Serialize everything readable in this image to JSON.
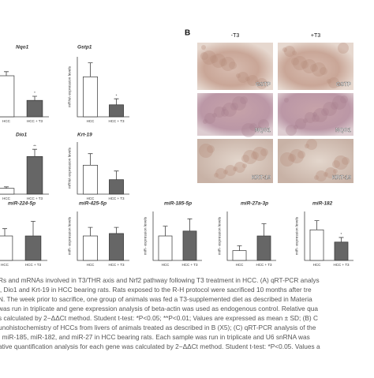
{
  "panel_b": {
    "label": "B",
    "columns": [
      "-T3",
      "+T3"
    ],
    "images": [
      {
        "label": "GSTP"
      },
      {
        "label": "GSTP"
      },
      {
        "label": "NQO1"
      },
      {
        "label": "NQO1"
      },
      {
        "label": "KRT-19"
      },
      {
        "label": "KRT-19"
      }
    ]
  },
  "charts": [
    {
      "type": "bar",
      "title": "Nqo1",
      "categories": [
        "HCC",
        "HCC + T3"
      ],
      "values": [
        1.0,
        0.4
      ],
      "errors": [
        0.1,
        0.1
      ],
      "annotation": "*",
      "ylim": [
        0,
        1.5
      ]
    },
    {
      "type": "bar",
      "title": "Gstp1",
      "y_label": "mRNA expression levels",
      "categories": [
        "HCC",
        "HCC + T3"
      ],
      "values": [
        1.0,
        0.3
      ],
      "errors": [
        0.35,
        0.15
      ],
      "annotation": "*",
      "ylim": [
        0,
        1.5
      ]
    },
    {
      "type": "bar",
      "title": "Dio1",
      "categories": [
        "HCC",
        "HCC + T3"
      ],
      "values": [
        0.2,
        1.3
      ],
      "errors": [
        0.05,
        0.25
      ],
      "annotation": "**",
      "ylim": [
        0,
        1.8
      ]
    },
    {
      "type": "bar",
      "title": "Krt-19",
      "y_label": "mRNA expression levels",
      "categories": [
        "HCC",
        "HCC + T3"
      ],
      "values": [
        1.0,
        0.5
      ],
      "errors": [
        0.4,
        0.3
      ],
      "ylim": [
        0,
        1.8
      ]
    },
    {
      "type": "bar",
      "title": "miR-224-5p",
      "categories": [
        "HCC",
        "HCC + T3"
      ],
      "values": [
        1.0,
        1.0
      ],
      "errors": [
        0.3,
        0.6
      ],
      "ylim": [
        0,
        2
      ]
    },
    {
      "type": "bar",
      "title": "miR-425-5p",
      "y_label": "miR- expression levels",
      "categories": [
        "HCC",
        "HCC + T3"
      ],
      "values": [
        1.0,
        1.1
      ],
      "errors": [
        0.35,
        0.25
      ],
      "ylim": [
        0,
        2
      ]
    },
    {
      "type": "bar",
      "title": "miR-185-5p",
      "y_label": "miR- expression levels",
      "categories": [
        "HCC",
        "HCC + T3"
      ],
      "values": [
        1.0,
        1.2
      ],
      "errors": [
        0.4,
        0.5
      ],
      "ylim": [
        0,
        2
      ]
    },
    {
      "type": "bar",
      "title": "miR-27a-3p",
      "y_label": "miR- expression levels",
      "categories": [
        "HCC",
        "HCC + T3"
      ],
      "values": [
        0.4,
        1.0
      ],
      "errors": [
        0.2,
        0.5
      ],
      "ylim": [
        0,
        2
      ]
    },
    {
      "type": "bar",
      "title": "miR-182",
      "y_label": "miR- expression levels",
      "categories": [
        "HCC",
        "HCC + T3"
      ],
      "values": [
        1.0,
        0.6
      ],
      "errors": [
        0.3,
        0.15
      ],
      "annotation": "*",
      "ylim": [
        0,
        1.6
      ]
    }
  ],
  "caption": [
    "Rs and mRNAs involved in T3/THR axis and Nrf2 pathway following T3 treatment in HCC. (A) qRT-PCR analys",
    "l, Dio1 and Krt-19 in HCC bearing rats. Rats exposed to the R-H protocol were sacrificed 10 months after tre",
    "N. The week prior to sacrifice, one group of animals was fed a T3-supplemented diet as described in Materia",
    "was run in triplicate and gene expression analysis of beta-actin was used as endogenous control. Relative qua",
    "s calculated by 2−ΔΔCt method. Student t-test: *P<0.05; **P<0.01; Values are expressed as mean ± SD; (B) C",
    "unohistochemistry of HCCs from livers of animals treated as described in B (X5); (C) qRT-PCR analysis of the",
    ", miR-185, miR-182, and miR-27 in HCC bearing rats. Each sample was run in triplicate and U6 snRNA was",
    "ative quantification analysis for each gene was calculated by 2−ΔΔCt method. Student t-test: *P<0.05. Values a"
  ]
}
